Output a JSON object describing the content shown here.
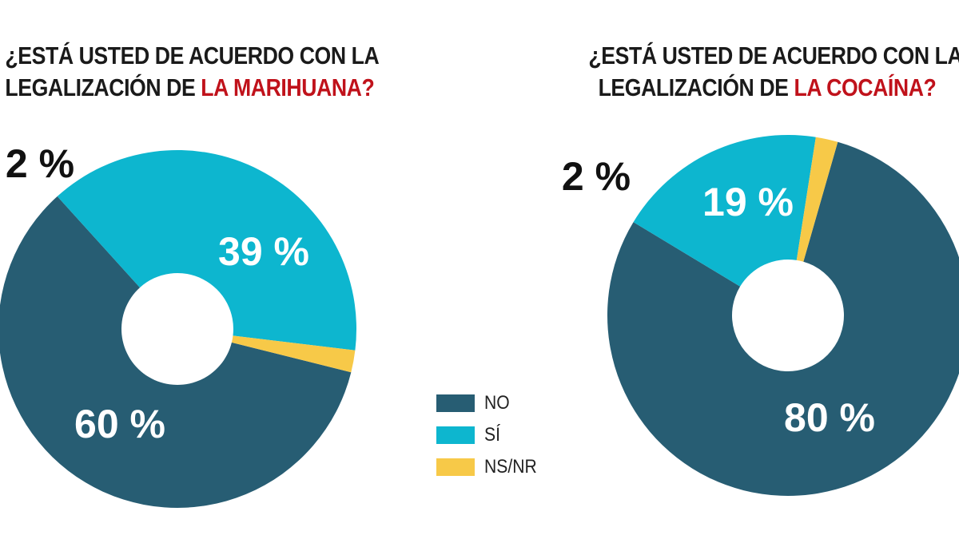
{
  "colors": {
    "no": "#275d73",
    "si": "#0db6cf",
    "nsnr": "#f7c948",
    "highlight": "#c0121b"
  },
  "chart_data": [
    {
      "type": "pie",
      "title_line1": "¿ESTÁ USTED DE ACUERDO CON LA",
      "title_prefix": "LEGALIZACIÓN DE ",
      "title_highlight": "LA MARIHUANA?",
      "categories": [
        "NO",
        "SÍ",
        "NS/NR"
      ],
      "values": [
        60,
        39,
        2
      ],
      "labels": [
        "60 %",
        "39 %",
        "2 %"
      ]
    },
    {
      "type": "pie",
      "title_line1": "¿ESTÁ USTED DE ACUERDO CON LA",
      "title_prefix": "LEGALIZACIÓN DE ",
      "title_highlight": "LA COCAÍNA?",
      "categories": [
        "NO",
        "SÍ",
        "NS/NR"
      ],
      "values": [
        80,
        19,
        2
      ],
      "labels": [
        "80 %",
        "19 %",
        "2 %"
      ]
    }
  ],
  "legend": [
    {
      "label": "NO",
      "color": "#275d73"
    },
    {
      "label": "SÍ",
      "color": "#0db6cf"
    },
    {
      "label": "NS/NR",
      "color": "#f7c948"
    }
  ]
}
